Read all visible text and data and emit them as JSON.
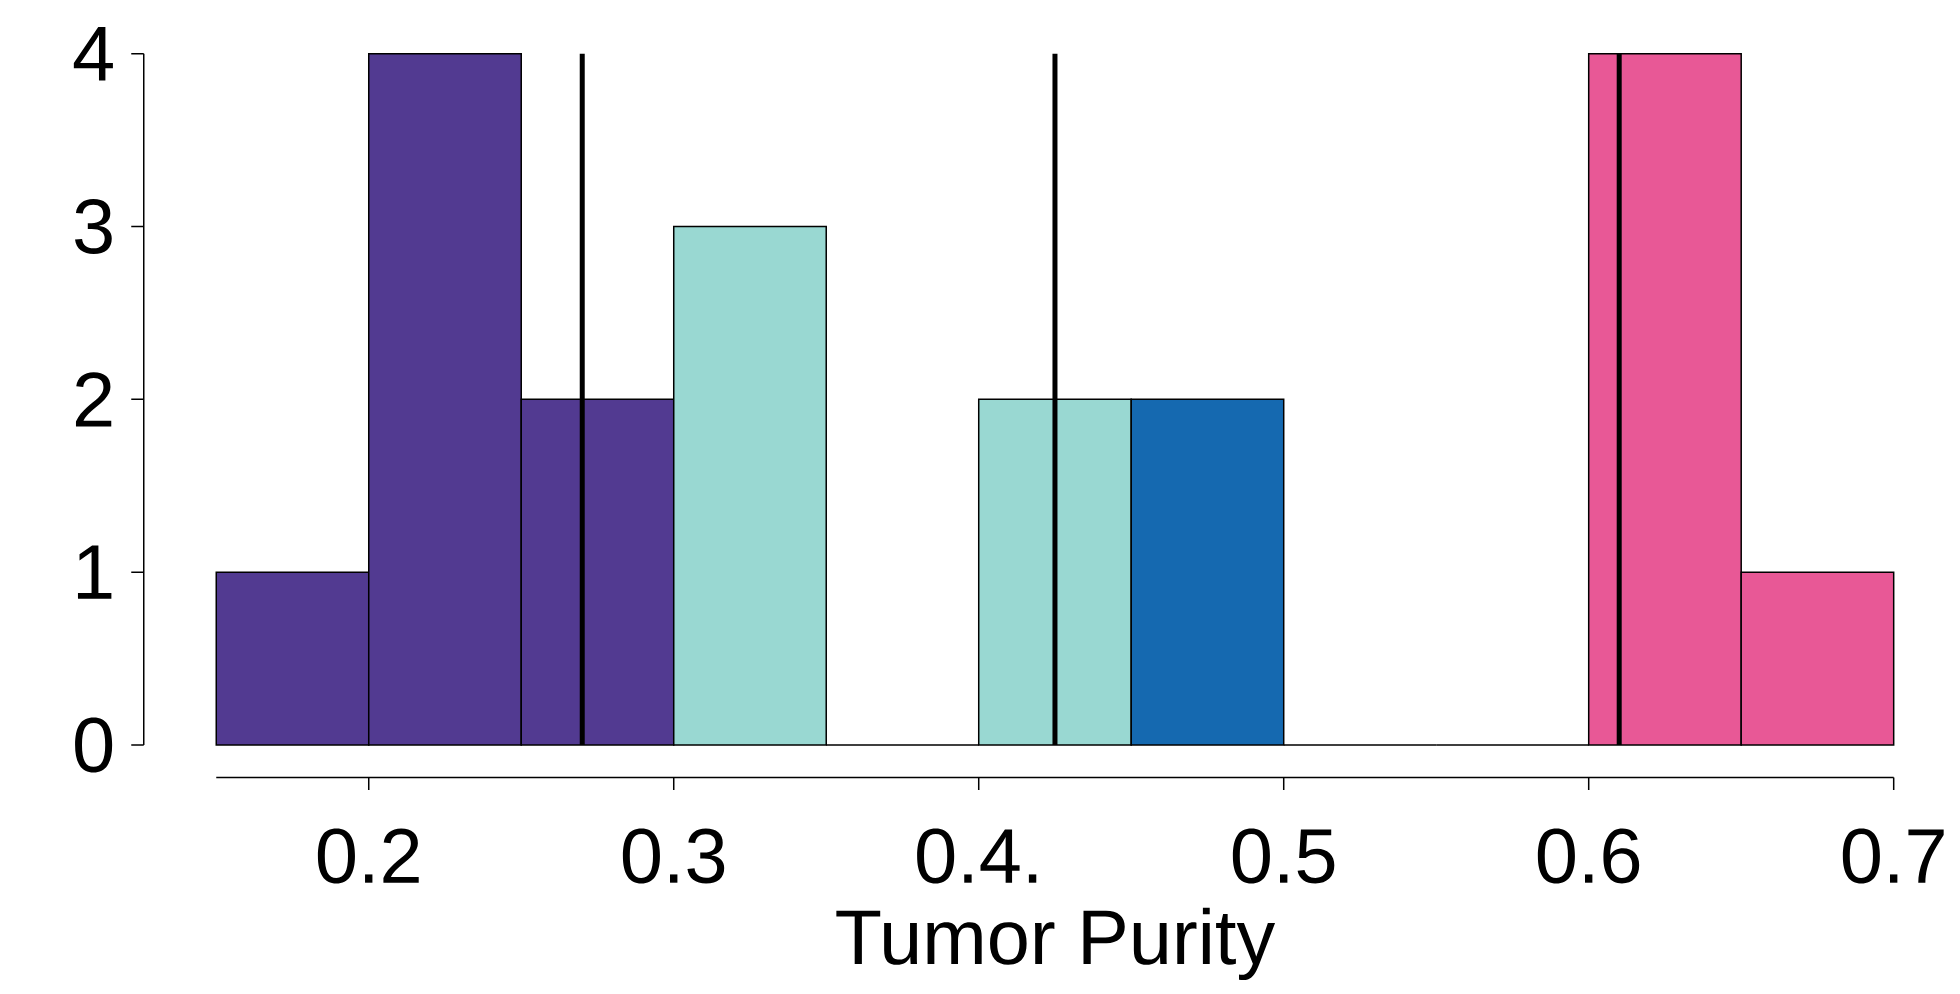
{
  "chart_data": {
    "type": "histogram",
    "xlabel": "Tumor Purity",
    "bins": [
      0.15,
      0.2,
      0.25,
      0.3,
      0.35,
      0.4,
      0.45,
      0.5,
      0.55,
      0.6,
      0.65,
      0.7
    ],
    "values": [
      1,
      4,
      2,
      3,
      0,
      2,
      2,
      0,
      0,
      4,
      1
    ],
    "colors": [
      "#523a91",
      "#523a91",
      "#523a91",
      "#99d8d2",
      "#99d8d2",
      "#99d8d2",
      "#1569b0",
      "#1569b0",
      "#e85896",
      "#e85896",
      "#e85896"
    ],
    "xlim": [
      0.15,
      0.7
    ],
    "ylim": [
      0,
      4
    ],
    "xticks": [
      0.2,
      0.3,
      {
        "value": 0.4,
        "label": "0.4."
      },
      0.5,
      0.6,
      0.7
    ],
    "yticks": [
      0,
      1,
      2,
      3,
      4
    ],
    "ref_lines": [
      {
        "axis": "x",
        "value": 0.27,
        "color": "#000000"
      },
      {
        "axis": "x",
        "value": 0.425,
        "color": "#000000"
      },
      {
        "axis": "x",
        "value": 0.61,
        "color": "#000000"
      }
    ],
    "grid": false
  }
}
